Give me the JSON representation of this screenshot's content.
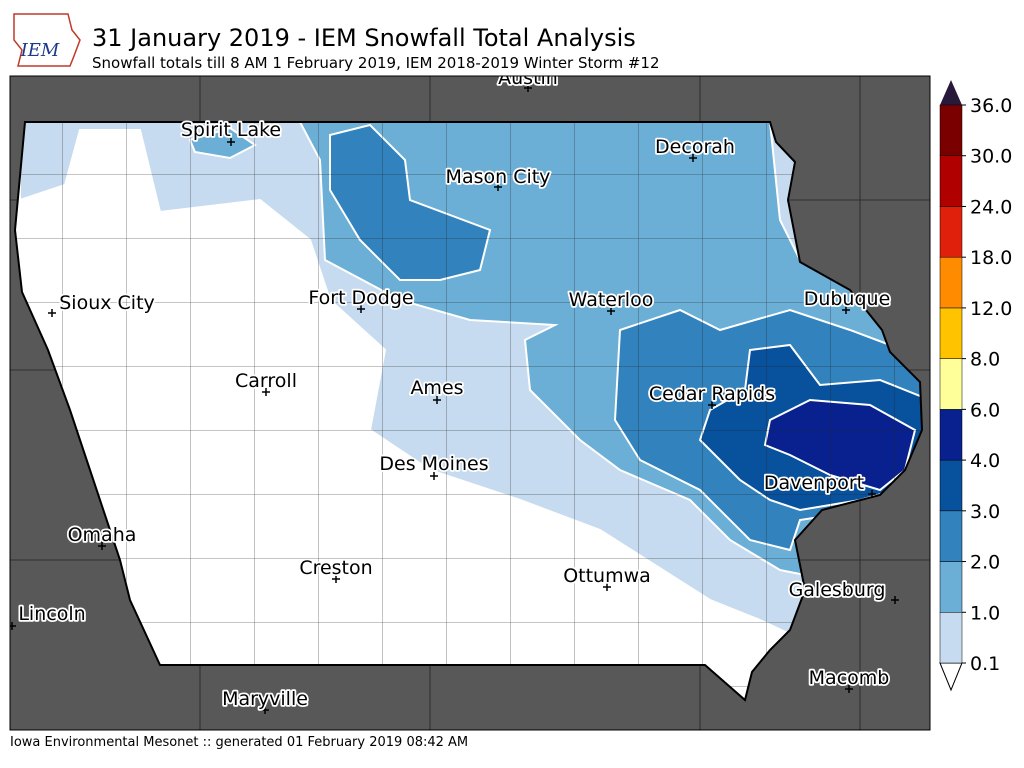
{
  "header": {
    "title": "31 January 2019 - IEM Snowfall Total Analysis",
    "subtitle": "Snowfall totals till 8 AM 1 February 2019, IEM 2018-2019 Winter Storm #12",
    "logo": "IEM"
  },
  "map": {
    "cities": [
      "Austin",
      "Spirit Lake",
      "Decorah",
      "Mason City",
      "Sioux City",
      "Fort Dodge",
      "Waterloo",
      "Dubuque",
      "Carroll",
      "Ames",
      "Cedar Rapids",
      "Des Moines",
      "Davenport",
      "Omaha",
      "Creston",
      "Ottumwa",
      "Galesburg",
      "Lincoln",
      "Macomb",
      "Maryville"
    ]
  },
  "colorbar": {
    "levels": [
      "0.1",
      "1.0",
      "2.0",
      "3.0",
      "4.0",
      "6.0",
      "8.0",
      "12.0",
      "18.0",
      "24.0",
      "30.0",
      "36.0"
    ],
    "colors": [
      "#c6dbef",
      "#6baed6",
      "#3182bd",
      "#08519c",
      "#08218f",
      "#ffff99",
      "#ffc300",
      "#ff8c00",
      "#e0200a",
      "#b00000",
      "#7a0000"
    ]
  },
  "footer": "Iowa Environmental Mesonet :: generated 01 February 2019 08:42 AM"
}
